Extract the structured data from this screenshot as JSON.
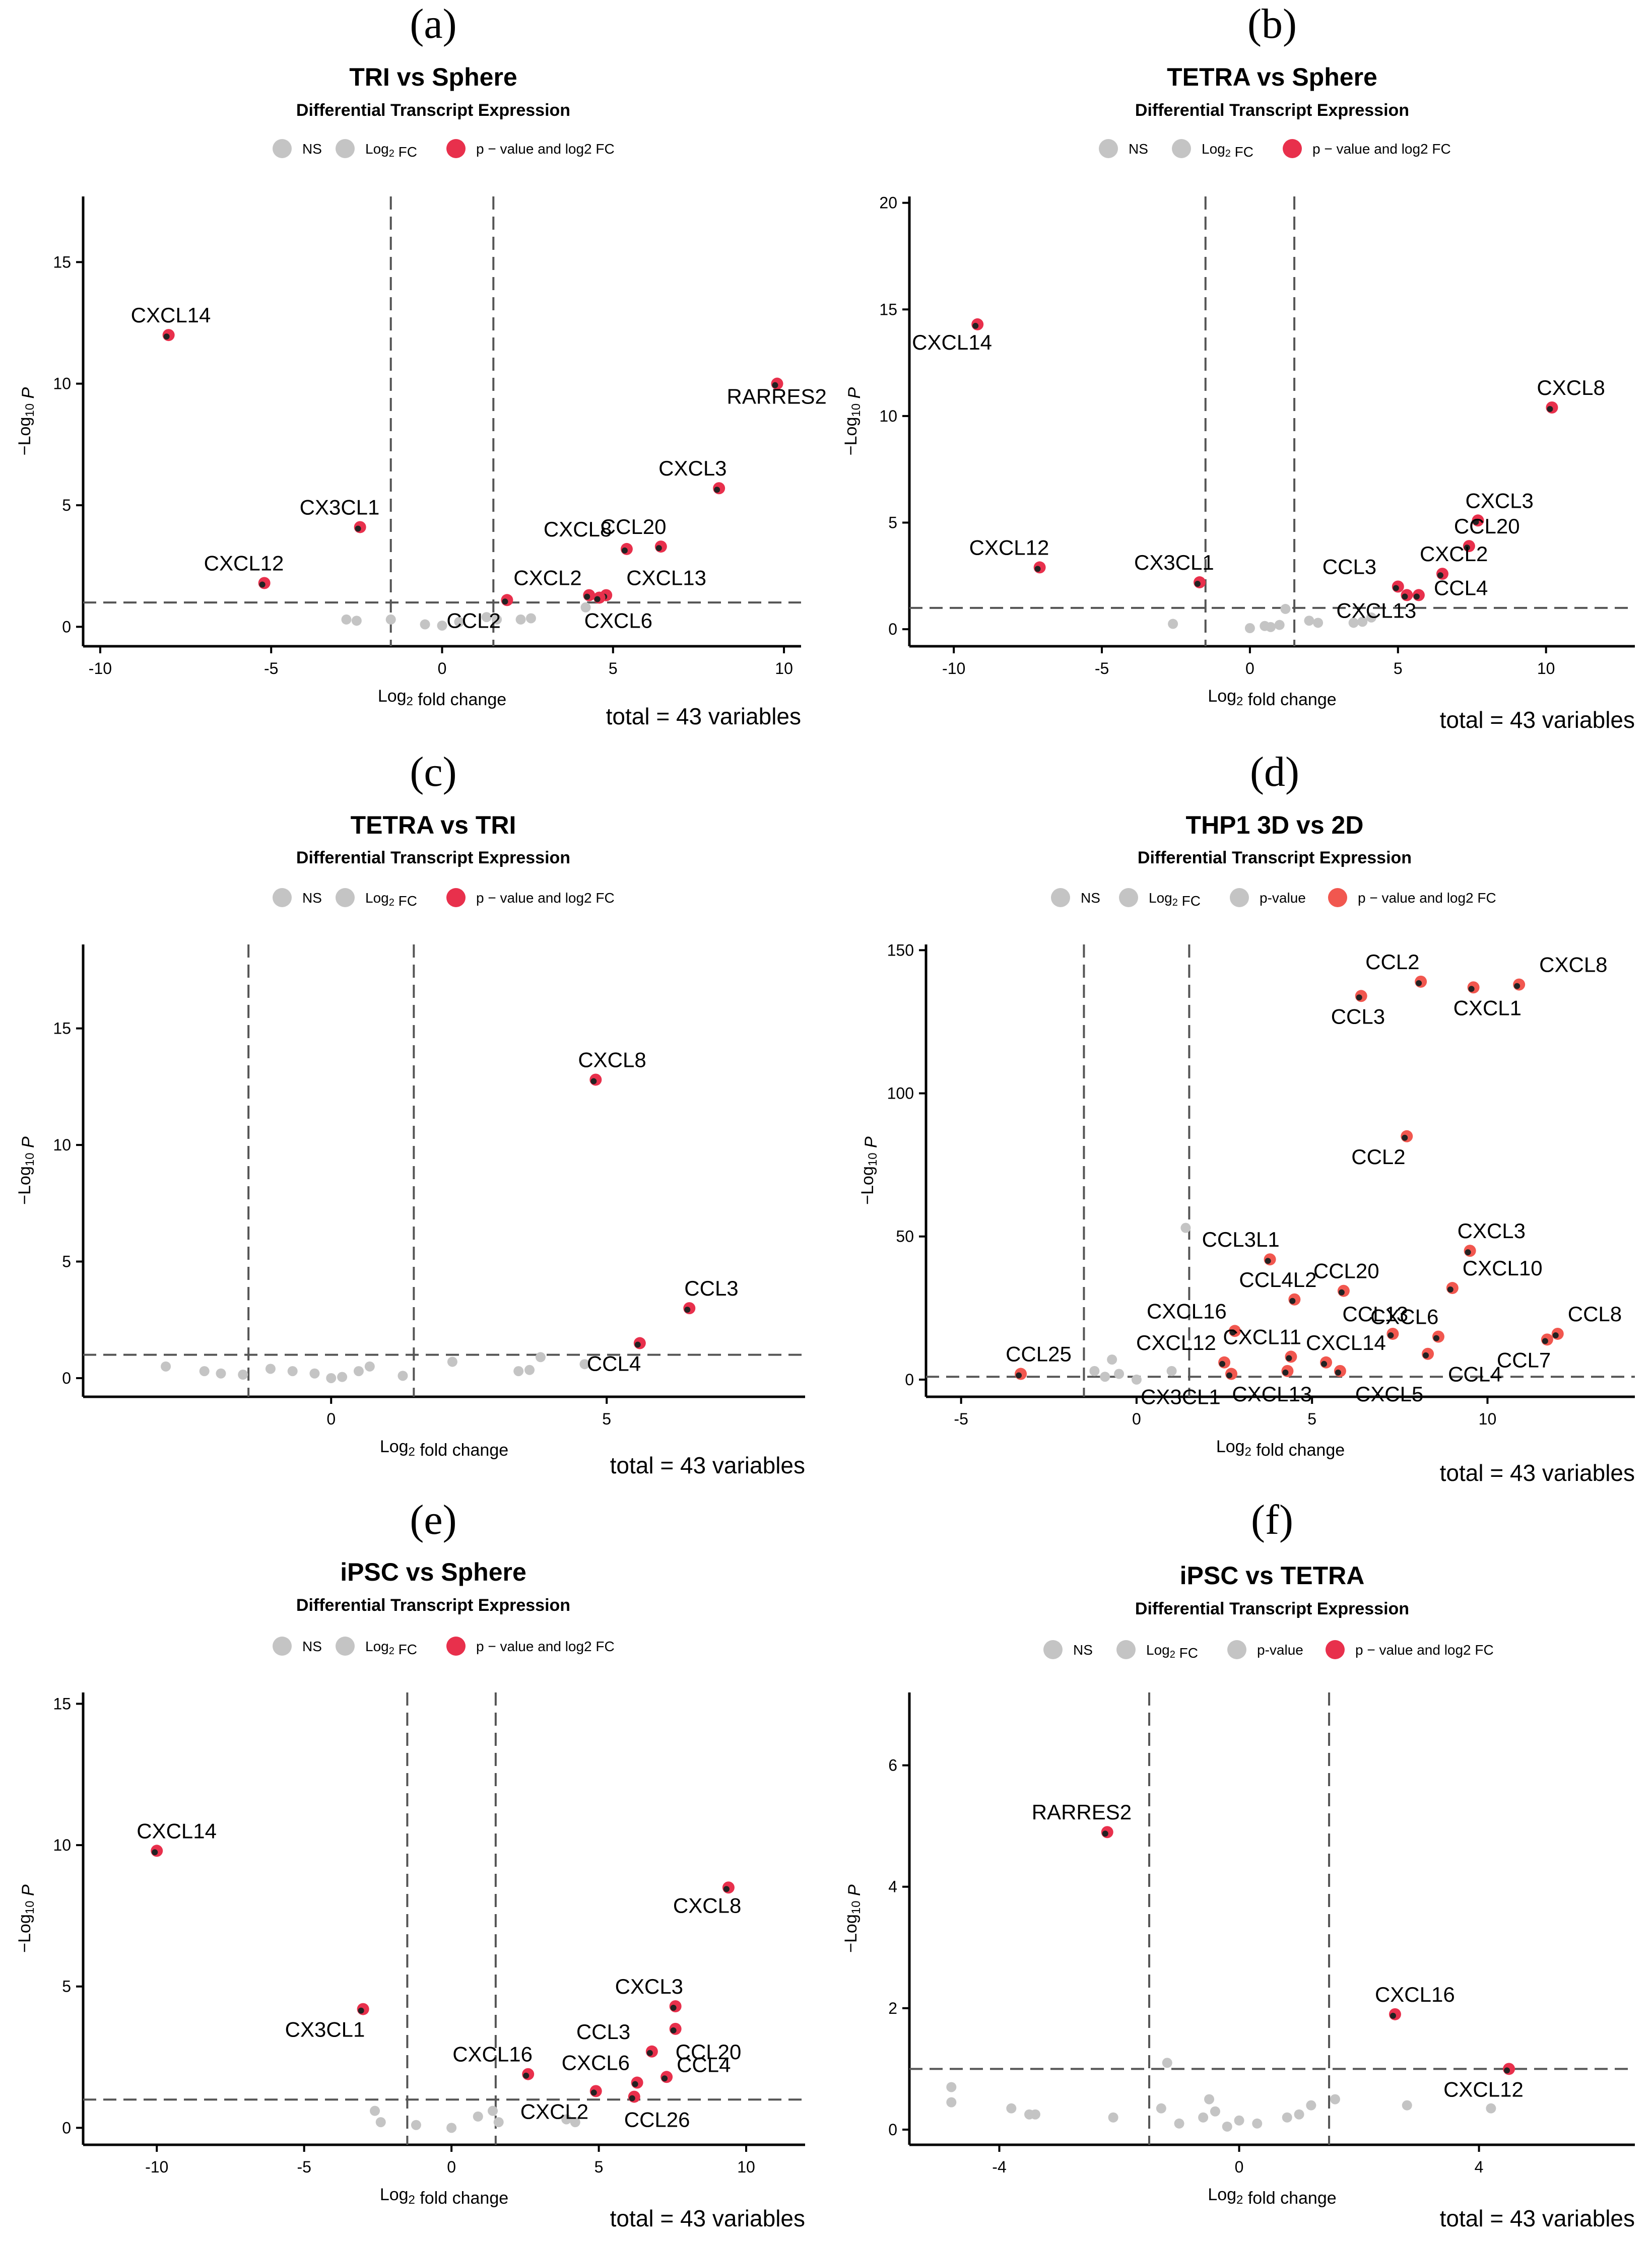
{
  "colors": {
    "sig": "#e8304c",
    "sig_d": "#f1574f",
    "ns": "#c4c4c4",
    "axis": "#000000",
    "cutoff": "#555555"
  },
  "chart_data": [
    {
      "type": "scatter",
      "panel_letter": "(a)",
      "title": "TRI vs Sphere",
      "subtitle": "Differential Transcript Expression",
      "xlabel": "Log2 fold change",
      "ylabel": "−Log10 P",
      "xlim": [
        -10.5,
        10.5
      ],
      "ylim": [
        -0.8,
        17.7
      ],
      "xticks": [
        -10,
        -5,
        0,
        5,
        10
      ],
      "yticks": [
        0,
        5,
        10,
        15
      ],
      "fc_cutoff": 1.5,
      "p_cutoff": 1.0,
      "legend": [
        "NS",
        "Log2 FC",
        "p − value and log2 FC"
      ],
      "total": "total = 43 variables",
      "significant": [
        {
          "label": "CXCL14",
          "x": -8.0,
          "y": 12.0
        },
        {
          "label": "RARRES2",
          "x": 9.8,
          "y": 10.0
        },
        {
          "label": "CX3CL1",
          "x": -2.4,
          "y": 4.1
        },
        {
          "label": "CXCL12",
          "x": -5.2,
          "y": 1.8
        },
        {
          "label": "CXCL3",
          "x": 8.1,
          "y": 5.7
        },
        {
          "label": "CCL20",
          "x": 6.4,
          "y": 3.3
        },
        {
          "label": "CXCL8",
          "x": 5.4,
          "y": 3.2
        },
        {
          "label": "CXCL2",
          "x": 4.3,
          "y": 1.3
        },
        {
          "label": "CXCL13",
          "x": 4.8,
          "y": 1.3
        },
        {
          "label": "CXCL6",
          "x": 4.6,
          "y": 1.2
        },
        {
          "label": "CCL2",
          "x": 1.9,
          "y": 1.1
        }
      ],
      "ns": [
        [
          -2.8,
          0.3
        ],
        [
          -2.5,
          0.25
        ],
        [
          -1.5,
          0.3
        ],
        [
          -0.5,
          0.1
        ],
        [
          0.0,
          0.05
        ],
        [
          0.5,
          0.2
        ],
        [
          1.3,
          0.4
        ],
        [
          1.6,
          0.3
        ],
        [
          2.3,
          0.3
        ],
        [
          2.6,
          0.35
        ],
        [
          4.2,
          0.8
        ]
      ]
    },
    {
      "type": "scatter",
      "panel_letter": "(b)",
      "title": "TETRA vs Sphere",
      "subtitle": "Differential Transcript Expression",
      "xlabel": "Log2 fold change",
      "ylabel": "−Log10 P",
      "xlim": [
        -11.5,
        13
      ],
      "ylim": [
        -0.8,
        20.3
      ],
      "xticks": [
        -10,
        -5,
        0,
        5,
        10
      ],
      "yticks": [
        0,
        5,
        10,
        15,
        20
      ],
      "fc_cutoff": 1.5,
      "p_cutoff": 1.0,
      "legend": [
        "NS",
        "Log2 FC",
        "p − value and log2 FC"
      ],
      "total": "total = 43 variables",
      "significant": [
        {
          "label": "CXCL14",
          "x": -9.2,
          "y": 14.3
        },
        {
          "label": "CXCL8",
          "x": 10.2,
          "y": 10.4
        },
        {
          "label": "CXCL12",
          "x": -7.1,
          "y": 2.9
        },
        {
          "label": "CX3CL1",
          "x": -1.7,
          "y": 2.2
        },
        {
          "label": "CXCL3",
          "x": 7.7,
          "y": 5.1
        },
        {
          "label": "CCL20",
          "x": 7.4,
          "y": 3.9
        },
        {
          "label": "CXCL2",
          "x": 6.5,
          "y": 2.6
        },
        {
          "label": "CCL3",
          "x": 5.0,
          "y": 2.0
        },
        {
          "label": "CCL4",
          "x": 5.7,
          "y": 1.6
        },
        {
          "label": "CXCL13",
          "x": 5.3,
          "y": 1.6
        }
      ],
      "ns": [
        [
          -2.6,
          0.25
        ],
        [
          0.0,
          0.05
        ],
        [
          0.5,
          0.15
        ],
        [
          0.7,
          0.1
        ],
        [
          1.0,
          0.2
        ],
        [
          1.2,
          0.95
        ],
        [
          2.0,
          0.4
        ],
        [
          2.3,
          0.3
        ],
        [
          3.5,
          0.3
        ],
        [
          3.8,
          0.35
        ],
        [
          4.1,
          0.55
        ]
      ]
    },
    {
      "type": "scatter",
      "panel_letter": "(c)",
      "title": "TETRA vs TRI",
      "subtitle": "Differential Transcript Expression",
      "xlabel": "Log2 fold change",
      "ylabel": "−Log10 P",
      "xlim": [
        -4.5,
        8.6
      ],
      "ylim": [
        -0.8,
        18.6
      ],
      "xticks": [
        0,
        5
      ],
      "yticks": [
        0,
        5,
        10,
        15
      ],
      "fc_cutoff": 1.5,
      "p_cutoff": 1.0,
      "legend": [
        "NS",
        "Log2 FC",
        "p − value and log2 FC"
      ],
      "total": "total = 43 variables",
      "significant": [
        {
          "label": "CXCL8",
          "x": 4.8,
          "y": 12.8
        },
        {
          "label": "CCL3",
          "x": 6.5,
          "y": 3.0
        },
        {
          "label": "CCL4",
          "x": 5.6,
          "y": 1.5
        }
      ],
      "ns": [
        [
          -3.0,
          0.5
        ],
        [
          -2.3,
          0.3
        ],
        [
          -2.0,
          0.2
        ],
        [
          -1.6,
          0.15
        ],
        [
          -1.1,
          0.4
        ],
        [
          -0.7,
          0.3
        ],
        [
          -0.3,
          0.2
        ],
        [
          0.0,
          0.0
        ],
        [
          0.2,
          0.05
        ],
        [
          0.5,
          0.3
        ],
        [
          0.7,
          0.5
        ],
        [
          1.3,
          0.1
        ],
        [
          2.2,
          0.7
        ],
        [
          3.4,
          0.3
        ],
        [
          3.6,
          0.35
        ],
        [
          3.8,
          0.9
        ],
        [
          4.6,
          0.6
        ]
      ]
    },
    {
      "type": "scatter",
      "panel_letter": "(d)",
      "title": "THP1 3D vs 2D",
      "subtitle": "Differential Transcript Expression",
      "xlabel": "Log2 fold change",
      "ylabel": "−Log10 P",
      "xlim": [
        -6,
        14.2
      ],
      "ylim": [
        -6,
        152
      ],
      "xticks": [
        -5,
        0,
        5,
        10
      ],
      "yticks": [
        0,
        50,
        100,
        150
      ],
      "fc_cutoff": 1.5,
      "p_cutoff": 1.0,
      "legend": [
        "NS",
        "Log2 FC",
        "p-value",
        "p − value and log2 FC"
      ],
      "total": "total = 43 variables",
      "significant": [
        {
          "label": "CCL2",
          "x": 8.1,
          "y": 139
        },
        {
          "label": "CXCL8",
          "x": 10.9,
          "y": 138
        },
        {
          "label": "CXCL1",
          "x": 9.6,
          "y": 137
        },
        {
          "label": "CCL3",
          "x": 6.4,
          "y": 134
        },
        {
          "label": "CCL2",
          "x": 7.7,
          "y": 85
        },
        {
          "label": "CCL3L1",
          "x": 3.8,
          "y": 42
        },
        {
          "label": "CXCL3",
          "x": 9.5,
          "y": 45
        },
        {
          "label": "CCL20",
          "x": 5.9,
          "y": 31
        },
        {
          "label": "CXCL10",
          "x": 9.0,
          "y": 32
        },
        {
          "label": "CCL4L2",
          "x": 4.5,
          "y": 28
        },
        {
          "label": "CXCL16",
          "x": 2.8,
          "y": 17
        },
        {
          "label": "CCL13",
          "x": 7.3,
          "y": 16
        },
        {
          "label": "CXCL6",
          "x": 8.6,
          "y": 15
        },
        {
          "label": "CCL8",
          "x": 12.0,
          "y": 16
        },
        {
          "label": "CCL7",
          "x": 11.7,
          "y": 14
        },
        {
          "label": "CXCL11",
          "x": 4.4,
          "y": 8
        },
        {
          "label": "CXCL14",
          "x": 5.4,
          "y": 6
        },
        {
          "label": "CXCL12",
          "x": 2.5,
          "y": 6
        },
        {
          "label": "CCL25",
          "x": -3.3,
          "y": 2
        },
        {
          "label": "CX3CL1",
          "x": 2.7,
          "y": 2
        },
        {
          "label": "CXCL13",
          "x": 4.3,
          "y": 3
        },
        {
          "label": "CXCL5",
          "x": 5.8,
          "y": 3
        },
        {
          "label": "CCL4",
          "x": 8.3,
          "y": 9
        }
      ],
      "ns": [
        [
          -1.2,
          3
        ],
        [
          -0.9,
          1
        ],
        [
          -0.7,
          7
        ],
        [
          -0.5,
          2
        ],
        [
          0.0,
          0
        ],
        [
          1.0,
          3
        ],
        [
          1.4,
          53
        ]
      ]
    },
    {
      "type": "scatter",
      "panel_letter": "(e)",
      "title": "iPSC vs Sphere",
      "subtitle": "Differential Transcript Expression",
      "xlabel": "Log2 fold change",
      "ylabel": "−Log10 P",
      "xlim": [
        -12.5,
        12
      ],
      "ylim": [
        -0.6,
        15.4
      ],
      "xticks": [
        -10,
        -5,
        0,
        5,
        10
      ],
      "yticks": [
        0,
        5,
        10,
        15
      ],
      "fc_cutoff": 1.5,
      "p_cutoff": 1.0,
      "legend": [
        "NS",
        "Log2 FC",
        "p − value and log2 FC"
      ],
      "total": "total = 43 variables",
      "significant": [
        {
          "label": "CXCL14",
          "x": -10.0,
          "y": 9.8
        },
        {
          "label": "CXCL8",
          "x": 9.4,
          "y": 8.5
        },
        {
          "label": "CX3CL1",
          "x": -3.0,
          "y": 4.2
        },
        {
          "label": "CXCL3",
          "x": 7.6,
          "y": 4.3
        },
        {
          "label": "CCL20",
          "x": 7.6,
          "y": 3.5
        },
        {
          "label": "CCL3",
          "x": 6.8,
          "y": 2.7
        },
        {
          "label": "CXCL16",
          "x": 2.6,
          "y": 1.9
        },
        {
          "label": "CCL4",
          "x": 7.3,
          "y": 1.8
        },
        {
          "label": "CXCL6",
          "x": 6.3,
          "y": 1.6
        },
        {
          "label": "CXCL2",
          "x": 4.9,
          "y": 1.3
        },
        {
          "label": "CCL26",
          "x": 6.2,
          "y": 1.1
        }
      ],
      "ns": [
        [
          -2.6,
          0.6
        ],
        [
          -2.4,
          0.2
        ],
        [
          -1.2,
          0.1
        ],
        [
          0.0,
          0.0
        ],
        [
          0.9,
          0.4
        ],
        [
          1.4,
          0.6
        ],
        [
          1.6,
          0.2
        ],
        [
          3.9,
          0.3
        ],
        [
          4.2,
          0.2
        ]
      ]
    },
    {
      "type": "scatter",
      "panel_letter": "(f)",
      "title": "iPSC vs TETRA",
      "subtitle": "Differential Transcript Expression",
      "xlabel": "Log2 fold change",
      "ylabel": "−Log10 P",
      "xlim": [
        -5.5,
        6.6
      ],
      "ylim": [
        -0.25,
        7.2
      ],
      "xticks": [
        -4,
        0,
        4
      ],
      "yticks": [
        0,
        2,
        4,
        6
      ],
      "fc_cutoff": 1.5,
      "p_cutoff": 1.0,
      "legend": [
        "NS",
        "Log2 FC",
        "p-value",
        "p − value and log2 FC"
      ],
      "total": "total = 43 variables",
      "significant": [
        {
          "label": "RARRES2",
          "x": -2.2,
          "y": 4.9
        },
        {
          "label": "CXCL16",
          "x": 2.6,
          "y": 1.9
        },
        {
          "label": "CXCL12",
          "x": 4.5,
          "y": 1.0
        }
      ],
      "ns": [
        [
          -4.8,
          0.7
        ],
        [
          -4.8,
          0.45
        ],
        [
          -3.8,
          0.35
        ],
        [
          -3.5,
          0.25
        ],
        [
          -3.4,
          0.25
        ],
        [
          -2.1,
          0.2
        ],
        [
          -1.3,
          0.35
        ],
        [
          -1.2,
          1.1
        ],
        [
          -1.0,
          0.1
        ],
        [
          -0.6,
          0.2
        ],
        [
          -0.5,
          0.5
        ],
        [
          -0.4,
          0.3
        ],
        [
          -0.2,
          0.05
        ],
        [
          0.0,
          0.15
        ],
        [
          0.3,
          0.1
        ],
        [
          0.8,
          0.2
        ],
        [
          1.0,
          0.25
        ],
        [
          1.2,
          0.4
        ],
        [
          1.6,
          0.5
        ],
        [
          2.8,
          0.4
        ],
        [
          4.2,
          0.35
        ]
      ]
    }
  ]
}
